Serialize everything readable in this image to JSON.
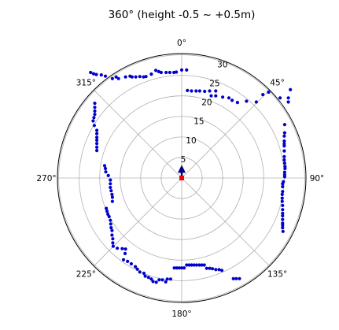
{
  "chart_data": {
    "type": "scatter",
    "projection": "polar",
    "title": "360°  (height -0.5 ~ +0.5m)",
    "theta_zero": "top",
    "theta_direction": "clockwise",
    "angle_ticks": [
      {
        "deg": 0,
        "label": "0°"
      },
      {
        "deg": 45,
        "label": "45°"
      },
      {
        "deg": 90,
        "label": "90°"
      },
      {
        "deg": 135,
        "label": "135°"
      },
      {
        "deg": 180,
        "label": "180°"
      },
      {
        "deg": 225,
        "label": "225°"
      },
      {
        "deg": 270,
        "label": "270°"
      },
      {
        "deg": 315,
        "label": "315°"
      }
    ],
    "radial_ticks": [
      {
        "value": 5,
        "label": "5"
      },
      {
        "value": 10,
        "label": "10"
      },
      {
        "value": 15,
        "label": "15"
      },
      {
        "value": 20,
        "label": "20"
      },
      {
        "value": 25,
        "label": "25"
      },
      {
        "value": 30,
        "label": "30"
      }
    ],
    "rlim": [
      0,
      30.3
    ],
    "grid": true,
    "series": [
      {
        "color": "#0000cc",
        "points": [
          [
            -6.3,
            26.2
          ],
          [
            -5.6,
            25.9
          ],
          [
            -5.0,
            25.7
          ],
          [
            -3.8,
            25.7
          ],
          [
            -2.9,
            25.7
          ],
          [
            -1.9,
            25.7
          ],
          [
            -1.3,
            25.8
          ],
          [
            0.0,
            26.3
          ],
          [
            1.2,
            26.3
          ],
          [
            -7.4,
            25.3
          ],
          [
            -8.7,
            24.7
          ],
          [
            -9.3,
            24.6
          ],
          [
            -10.2,
            24.7
          ],
          [
            -11.2,
            24.6
          ],
          [
            -12.1,
            24.6
          ],
          [
            -12.6,
            24.8
          ],
          [
            -13.7,
            24.6
          ],
          [
            -15.4,
            24.2
          ],
          [
            -16.0,
            24.6
          ],
          [
            -16.9,
            24.2
          ],
          [
            -18.6,
            24.8
          ],
          [
            -19.6,
            25.1
          ],
          [
            -20.8,
            25.2
          ],
          [
            -21.5,
            25.4
          ],
          [
            -22.2,
            25.7
          ],
          [
            1.4,
            21.3
          ],
          [
            2.4,
            21.2
          ],
          [
            3.5,
            21.2
          ],
          [
            4.4,
            21.2
          ],
          [
            5.6,
            21.1
          ],
          [
            6.8,
            21.2
          ],
          [
            8.3,
            21.2
          ],
          [
            7.2,
            20.0
          ],
          [
            8.3,
            20.0
          ],
          [
            10.0,
            19.7
          ],
          [
            11.5,
            19.5
          ],
          [
            12.3,
            18.9
          ],
          [
            13.6,
            18.4
          ],
          [
            15.8,
            18.7
          ],
          [
            18.2,
            18.5
          ],
          [
            19.8,
            20.3
          ],
          [
            21.2,
            20.9
          ],
          [
            24.0,
            19.5
          ],
          [
            26.0,
            19.5
          ],
          [
            26.0,
            18.5
          ],
          [
            26.5,
            21.5
          ],
          [
            25.1,
            13.0
          ],
          [
            25.1,
            11.0
          ],
          [
            25.0,
            10.2
          ],
          [
            25.0,
            9.0
          ],
          [
            25.0,
            8.3
          ],
          [
            25.0,
            7.8
          ],
          [
            25.0,
            6.6
          ],
          [
            25.0,
            5.2
          ],
          [
            25.0,
            4.4
          ],
          [
            25.1,
            3.6
          ],
          [
            25.2,
            2.8
          ],
          [
            25.2,
            2.3
          ],
          [
            25.1,
            1.4
          ],
          [
            25.1,
            0.8
          ],
          [
            25.1,
            0.3
          ],
          [
            24.8,
            -0.9
          ],
          [
            24.6,
            -1.4
          ],
          [
            24.6,
            -2.1
          ],
          [
            24.6,
            -3.3
          ],
          [
            24.5,
            -4.0
          ],
          [
            24.5,
            -4.9
          ],
          [
            24.5,
            -5.7
          ],
          [
            24.6,
            -6.7
          ],
          [
            24.6,
            -7.7
          ],
          [
            24.6,
            -8.6
          ],
          [
            24.6,
            -9.2
          ],
          [
            24.6,
            -10.1
          ],
          [
            24.6,
            -11.0
          ],
          [
            24.6,
            -11.5
          ],
          [
            24.6,
            -12.1
          ],
          [
            24.7,
            -13.0
          ],
          [
            14.1,
            -24.5
          ],
          [
            13.3,
            -24.5
          ],
          [
            12.6,
            -24.5
          ],
          [
            9.8,
            -22.5
          ],
          [
            9.1,
            -22.3
          ],
          [
            8.3,
            -22.3
          ],
          [
            7.5,
            -22.1
          ],
          [
            6.8,
            -22.0
          ],
          [
            6.1,
            -22.0
          ],
          [
            5.5,
            -21.2
          ],
          [
            4.9,
            -21.2
          ],
          [
            4.3,
            -21.2
          ],
          [
            3.6,
            -21.2
          ],
          [
            3.0,
            -21.2
          ],
          [
            2.4,
            -21.2
          ],
          [
            1.8,
            -21.2
          ],
          [
            1.2,
            -21.2
          ],
          [
            0.6,
            -21.9
          ],
          [
            0.0,
            -21.9
          ],
          [
            -0.6,
            -21.9
          ],
          [
            -1.2,
            -21.9
          ],
          [
            -1.8,
            -21.9
          ],
          [
            -2.7,
            -24.6
          ],
          [
            -3.5,
            -24.6
          ],
          [
            -3.9,
            -25.3
          ],
          [
            -4.7,
            -24.8
          ],
          [
            -5.5,
            -24.8
          ],
          [
            -6.2,
            -25.4
          ],
          [
            -7.0,
            -25.2
          ],
          [
            -7.4,
            -24.6
          ],
          [
            -8.1,
            -24.2
          ],
          [
            -8.9,
            -23.9
          ],
          [
            -9.2,
            -23.2
          ],
          [
            -10.2,
            -22.9
          ],
          [
            -10.8,
            -22.2
          ],
          [
            -11.3,
            -21.6
          ],
          [
            -12.3,
            -20.9
          ],
          [
            -13.2,
            -20.3
          ],
          [
            -14.2,
            -19.9
          ],
          [
            -13.8,
            -18.4
          ],
          [
            -13.7,
            -17.3
          ],
          [
            -14.5,
            -17.2
          ],
          [
            -15.7,
            -17.1
          ],
          [
            -16.7,
            -16.6
          ],
          [
            -16.8,
            -15.8
          ],
          [
            -16.8,
            -14.8
          ],
          [
            -17.0,
            -13.9
          ],
          [
            -17.0,
            -12.8
          ],
          [
            -17.2,
            -12.1
          ],
          [
            -17.3,
            -11.2
          ],
          [
            -17.4,
            -10.3
          ],
          [
            -17.7,
            -9.4
          ],
          [
            -18.0,
            -8.8
          ],
          [
            -18.2,
            -8.1
          ],
          [
            -18.4,
            -7.4
          ],
          [
            -16.9,
            -5.7
          ],
          [
            -16.9,
            -4.7
          ],
          [
            -17.0,
            -4.0
          ],
          [
            -17.2,
            -3.1
          ],
          [
            -17.4,
            -2.3
          ],
          [
            -17.4,
            -1.4
          ],
          [
            -17.4,
            -0.5
          ],
          [
            -17.9,
            0.6
          ],
          [
            -18.5,
            1.5
          ],
          [
            -18.6,
            2.3
          ],
          [
            -18.8,
            3.0
          ],
          [
            -20.7,
            6.7
          ],
          [
            -20.7,
            7.5
          ],
          [
            -20.7,
            8.4
          ],
          [
            -20.7,
            9.2
          ],
          [
            -20.7,
            9.9
          ],
          [
            -20.7,
            10.8
          ],
          [
            -20.7,
            11.6
          ],
          [
            -21.3,
            12.8
          ],
          [
            -21.6,
            13.9
          ],
          [
            -21.4,
            14.7
          ],
          [
            -21.2,
            15.5
          ],
          [
            -21.2,
            16.3
          ],
          [
            -21.2,
            17.2
          ],
          [
            -21.2,
            18.2
          ]
        ]
      }
    ],
    "heading_arrow": {
      "direction_deg": 0,
      "length": 3.2,
      "color": "#000080"
    },
    "origin_marker": {
      "color": "#ff0000"
    }
  }
}
